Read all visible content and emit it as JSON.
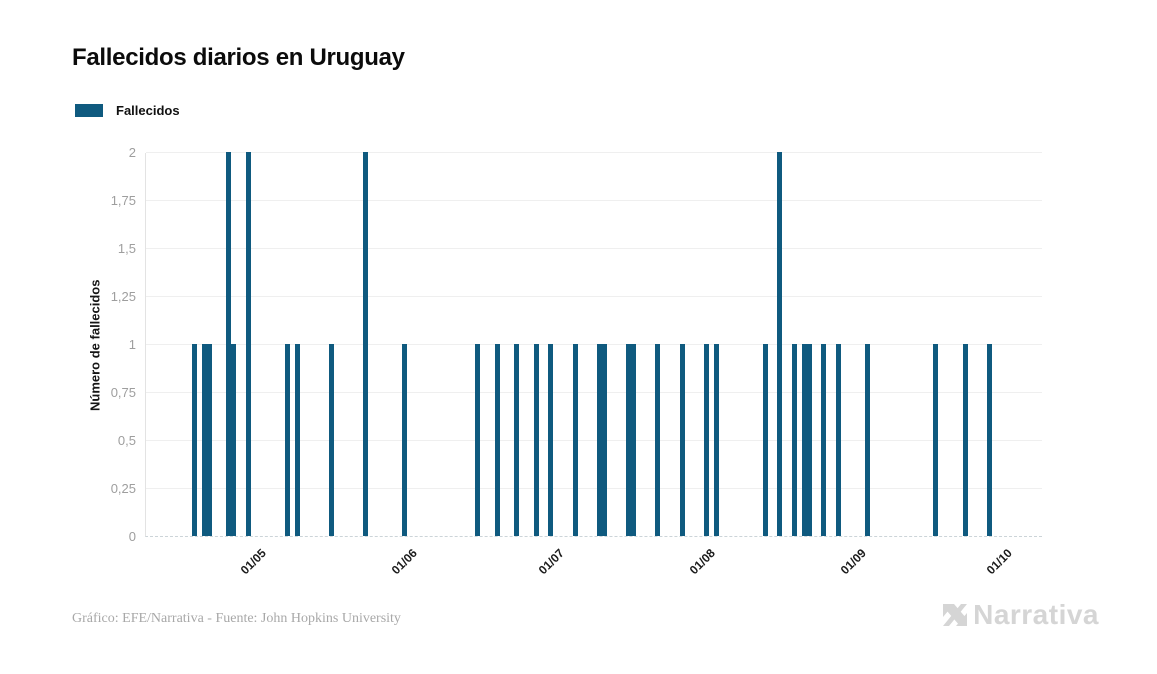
{
  "title": "Fallecidos diarios en Uruguay",
  "legend": {
    "label": "Fallecidos",
    "color": "#0f5a7f"
  },
  "footer": {
    "credit": "Gráfico: EFE/Narrativa - Fuente: John Hopkins University",
    "brand": "Narrativa"
  },
  "colors": {
    "bar": "#0f5a7f",
    "gridline": "#efefef",
    "y_tick_text": "#9e9e9e",
    "x_tick_text": "#1b1b1b",
    "brand_gray": "#d5d5d5"
  },
  "chart_data": {
    "type": "bar",
    "title": "Fallecidos diarios en Uruguay",
    "xlabel": "",
    "ylabel": "Número de fallecidos",
    "ylim": [
      0,
      2
    ],
    "grid": "horizontal",
    "legend_position": "top-left",
    "x_domain": [
      "2020-04-09",
      "2020-10-10"
    ],
    "y_ticks": [
      {
        "value": 0,
        "label": "0"
      },
      {
        "value": 0.25,
        "label": "0,25"
      },
      {
        "value": 0.5,
        "label": "0,5"
      },
      {
        "value": 0.75,
        "label": "0,75"
      },
      {
        "value": 1,
        "label": "1"
      },
      {
        "value": 1.25,
        "label": "1,25"
      },
      {
        "value": 1.5,
        "label": "1,5"
      },
      {
        "value": 1.75,
        "label": "1,75"
      },
      {
        "value": 2,
        "label": "2"
      }
    ],
    "x_ticks": [
      {
        "date": "2020-05-01",
        "label": "01/05"
      },
      {
        "date": "2020-06-01",
        "label": "01/06"
      },
      {
        "date": "2020-07-01",
        "label": "01/07"
      },
      {
        "date": "2020-08-01",
        "label": "01/08"
      },
      {
        "date": "2020-09-01",
        "label": "01/09"
      },
      {
        "date": "2020-10-01",
        "label": "01/10"
      }
    ],
    "series": [
      {
        "name": "Fallecidos",
        "color": "#0f5a7f",
        "points": [
          {
            "date": "2020-04-19",
            "value": 1
          },
          {
            "date": "2020-04-21",
            "value": 1
          },
          {
            "date": "2020-04-22",
            "value": 1
          },
          {
            "date": "2020-04-26",
            "value": 2
          },
          {
            "date": "2020-04-27",
            "value": 1
          },
          {
            "date": "2020-04-30",
            "value": 2
          },
          {
            "date": "2020-05-08",
            "value": 1
          },
          {
            "date": "2020-05-10",
            "value": 1
          },
          {
            "date": "2020-05-17",
            "value": 1
          },
          {
            "date": "2020-05-24",
            "value": 2
          },
          {
            "date": "2020-06-01",
            "value": 1
          },
          {
            "date": "2020-06-16",
            "value": 1
          },
          {
            "date": "2020-06-20",
            "value": 1
          },
          {
            "date": "2020-06-24",
            "value": 1
          },
          {
            "date": "2020-06-28",
            "value": 1
          },
          {
            "date": "2020-07-01",
            "value": 1
          },
          {
            "date": "2020-07-06",
            "value": 1
          },
          {
            "date": "2020-07-11",
            "value": 1
          },
          {
            "date": "2020-07-12",
            "value": 1
          },
          {
            "date": "2020-07-17",
            "value": 1
          },
          {
            "date": "2020-07-18",
            "value": 1
          },
          {
            "date": "2020-07-23",
            "value": 1
          },
          {
            "date": "2020-07-28",
            "value": 1
          },
          {
            "date": "2020-08-02",
            "value": 1
          },
          {
            "date": "2020-08-04",
            "value": 1
          },
          {
            "date": "2020-08-14",
            "value": 1
          },
          {
            "date": "2020-08-17",
            "value": 2
          },
          {
            "date": "2020-08-20",
            "value": 1
          },
          {
            "date": "2020-08-22",
            "value": 1
          },
          {
            "date": "2020-08-23",
            "value": 1
          },
          {
            "date": "2020-08-26",
            "value": 1
          },
          {
            "date": "2020-08-29",
            "value": 1
          },
          {
            "date": "2020-09-04",
            "value": 1
          },
          {
            "date": "2020-09-18",
            "value": 1
          },
          {
            "date": "2020-09-24",
            "value": 1
          },
          {
            "date": "2020-09-29",
            "value": 1
          }
        ]
      }
    ]
  }
}
